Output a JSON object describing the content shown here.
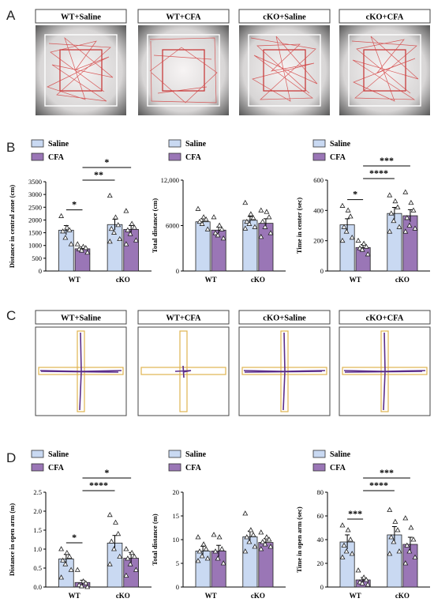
{
  "panel_letters": {
    "a": "A",
    "b": "B",
    "c": "C",
    "d": "D"
  },
  "group_labels": [
    "WT+Saline",
    "WT+CFA",
    "cKO+Saline",
    "cKO+CFA"
  ],
  "colors": {
    "saline": "#c9d9f2",
    "cfa": "#9a76b6",
    "track_red": "#d33f3f",
    "track_purple": "#5b2d8a",
    "arm_border": "#e0b350"
  },
  "chart_data": [
    {
      "type": "bar",
      "panel": "B",
      "ylabel": "Distance in central zone (cm)",
      "categories": [
        "WT",
        "cKO"
      ],
      "ylim": [
        0,
        3500
      ],
      "yticks": [
        "0",
        "500",
        "1000",
        "1500",
        "2000",
        "2500",
        "3000",
        "3500"
      ],
      "series": [
        {
          "name": "Saline",
          "values": [
            1600,
            1820
          ],
          "errors": [
            180,
            210
          ],
          "points": [
            [
              2150,
              1700,
              1600,
              1550,
              1300,
              1050
            ],
            [
              2950,
              2100,
              1800,
              1650,
              1500,
              1250,
              1150
            ]
          ]
        },
        {
          "name": "CFA",
          "values": [
            870,
            1630
          ],
          "errors": [
            80,
            150
          ],
          "points": [
            [
              1050,
              950,
              900,
              850,
              800,
              720
            ],
            [
              2350,
              1850,
              1700,
              1600,
              1450,
              1200,
              1050
            ]
          ]
        }
      ],
      "significance": [
        {
          "label": "*",
          "from": [
            0,
            0
          ],
          "to": [
            0,
            1
          ]
        },
        {
          "label": "**",
          "from": [
            0,
            1
          ],
          "to": [
            1,
            0
          ]
        },
        {
          "label": "*",
          "from": [
            0,
            1
          ],
          "to": [
            1,
            1
          ]
        }
      ]
    },
    {
      "type": "bar",
      "panel": "B",
      "ylabel": "Total distance (cm)",
      "categories": [
        "WT",
        "cKO"
      ],
      "ylim": [
        0,
        12000
      ],
      "yticks": [
        "0",
        "6000",
        "12,000"
      ],
      "series": [
        {
          "name": "Saline",
          "values": [
            6500,
            6700
          ],
          "errors": [
            400,
            500
          ],
          "points": [
            [
              8200,
              7100,
              6800,
              6500,
              6200,
              5500
            ],
            [
              9000,
              7500,
              7000,
              6500,
              6200,
              5800,
              5600
            ]
          ]
        },
        {
          "name": "CFA",
          "values": [
            5400,
            6300
          ],
          "errors": [
            400,
            600
          ],
          "points": [
            [
              7100,
              6000,
              5500,
              5000,
              4700,
              4300
            ],
            [
              8000,
              7800,
              7100,
              6500,
              5800,
              5000,
              4500
            ]
          ]
        }
      ],
      "significance": []
    },
    {
      "type": "bar",
      "panel": "B",
      "ylabel": "Time in center (sec)",
      "categories": [
        "WT",
        "cKO"
      ],
      "ylim": [
        0,
        600
      ],
      "yticks": [
        "0",
        "200",
        "400",
        "600"
      ],
      "series": [
        {
          "name": "Saline",
          "values": [
            305,
            380
          ],
          "errors": [
            40,
            40
          ],
          "points": [
            [
              430,
              400,
              360,
              290,
              260,
              220,
              200
            ],
            [
              500,
              460,
              420,
              380,
              330,
              290,
              260
            ]
          ]
        },
        {
          "name": "CFA",
          "values": [
            155,
            365
          ],
          "errors": [
            20,
            40
          ],
          "points": [
            [
              200,
              180,
              160,
              150,
              140,
              110
            ],
            [
              520,
              450,
              400,
              350,
              300,
              280,
              260
            ]
          ]
        }
      ],
      "significance": [
        {
          "label": "*",
          "from": [
            0,
            0
          ],
          "to": [
            0,
            1
          ]
        },
        {
          "label": "****",
          "from": [
            0,
            1
          ],
          "to": [
            1,
            0
          ]
        },
        {
          "label": "***",
          "from": [
            0,
            1
          ],
          "to": [
            1,
            1
          ]
        }
      ]
    },
    {
      "type": "bar",
      "panel": "D",
      "ylabel": "Distance in open arm (m)",
      "categories": [
        "WT",
        "cKO"
      ],
      "ylim": [
        0,
        2.5
      ],
      "yticks": [
        "0.0",
        "0.5",
        "1.0",
        "1.5",
        "2.0",
        "2.5"
      ],
      "series": [
        {
          "name": "Saline",
          "values": [
            0.74,
            1.16
          ],
          "errors": [
            0.12,
            0.2
          ],
          "points": [
            [
              1.0,
              0.9,
              0.8,
              0.7,
              0.6,
              0.45,
              0.25
            ],
            [
              1.9,
              1.7,
              1.4,
              1.2,
              1.0,
              0.8,
              0.6
            ]
          ]
        },
        {
          "name": "CFA",
          "values": [
            0.12,
            0.76
          ],
          "errors": [
            0.06,
            0.15
          ],
          "points": [
            [
              0.45,
              0.15,
              0.1,
              0.05,
              0.02,
              0.0
            ],
            [
              1.0,
              0.9,
              0.8,
              0.75,
              0.6,
              0.45,
              0.3
            ]
          ]
        }
      ],
      "significance": [
        {
          "label": "*",
          "from": [
            0,
            0
          ],
          "to": [
            0,
            1
          ]
        },
        {
          "label": "****",
          "from": [
            0,
            1
          ],
          "to": [
            1,
            0
          ]
        },
        {
          "label": "*",
          "from": [
            0,
            1
          ],
          "to": [
            1,
            1
          ]
        }
      ]
    },
    {
      "type": "bar",
      "panel": "D",
      "ylabel": "Total distance (m)",
      "categories": [
        "WT",
        "cKO"
      ],
      "ylim": [
        0,
        20
      ],
      "yticks": [
        "0",
        "5",
        "10",
        "15",
        "20"
      ],
      "series": [
        {
          "name": "Saline",
          "values": [
            7.6,
            10.6
          ],
          "errors": [
            1.0,
            1.2
          ],
          "points": [
            [
              10.5,
              9.0,
              8.0,
              7.5,
              6.5,
              6.0,
              5.5
            ],
            [
              15.5,
              12.0,
              11.0,
              10.5,
              9.5,
              8.5,
              7.5
            ]
          ]
        },
        {
          "name": "CFA",
          "values": [
            7.6,
            9.4
          ],
          "errors": [
            1.2,
            0.8
          ],
          "points": [
            [
              11.0,
              10.5,
              8.0,
              7.5,
              6.0,
              5.0
            ],
            [
              11.5,
              10.5,
              10.0,
              9.5,
              9.0,
              8.5,
              8.0
            ]
          ]
        }
      ],
      "significance": []
    },
    {
      "type": "bar",
      "panel": "D",
      "ylabel": "Time in open arm (sec)",
      "categories": [
        "WT",
        "cKO"
      ],
      "ylim": [
        0,
        80
      ],
      "yticks": [
        "0",
        "20",
        "40",
        "60",
        "80"
      ],
      "series": [
        {
          "name": "Saline",
          "values": [
            38,
            44
          ],
          "errors": [
            6,
            7
          ],
          "points": [
            [
              52,
              48,
              40,
              35,
              30,
              28,
              25
            ],
            [
              65,
              55,
              48,
              42,
              38,
              30,
              28
            ]
          ]
        },
        {
          "name": "CFA",
          "values": [
            6,
            36
          ],
          "errors": [
            2,
            6
          ],
          "points": [
            [
              14,
              8,
              6,
              4,
              3,
              2
            ],
            [
              58,
              50,
              40,
              35,
              30,
              25,
              20
            ]
          ]
        }
      ],
      "significance": [
        {
          "label": "***",
          "from": [
            0,
            0
          ],
          "to": [
            0,
            1
          ]
        },
        {
          "label": "****",
          "from": [
            0,
            1
          ],
          "to": [
            1,
            0
          ]
        },
        {
          "label": "***",
          "from": [
            0,
            1
          ],
          "to": [
            1,
            1
          ]
        }
      ]
    }
  ]
}
